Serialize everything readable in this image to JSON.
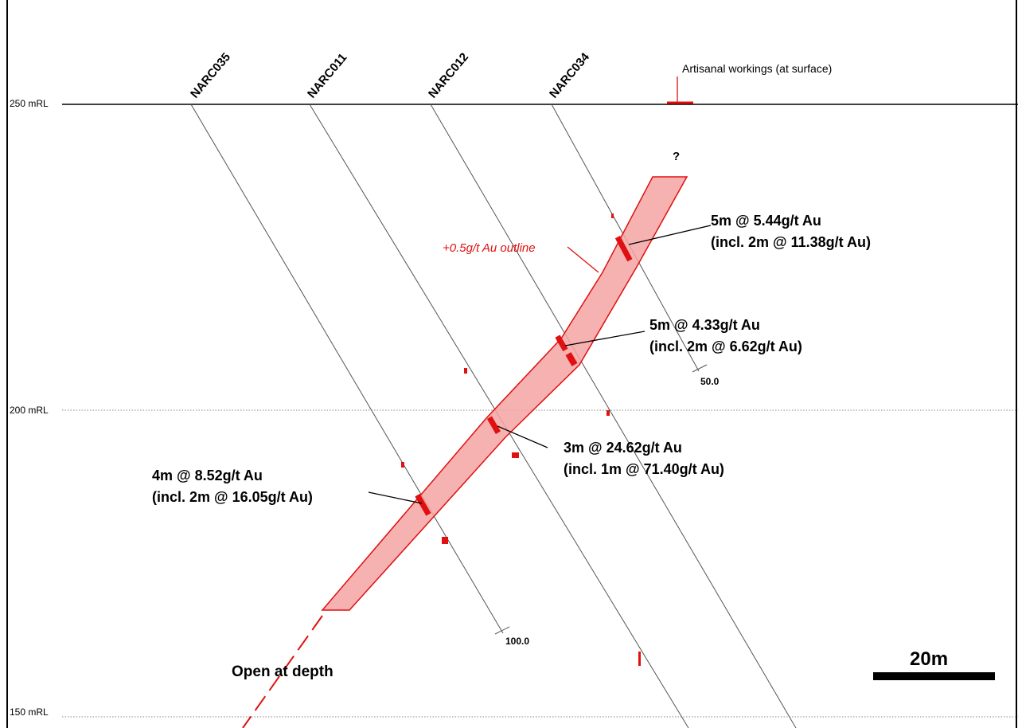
{
  "mrl_labels": {
    "rl_250": "250 mRL",
    "rl_200": "200 mRL",
    "rl_150": "150 mRL"
  },
  "drillholes": [
    {
      "name": "NARC035"
    },
    {
      "name": "NARC011"
    },
    {
      "name": "NARC012"
    },
    {
      "name": "NARC034"
    }
  ],
  "annotations": {
    "artisanal": "Artisanal workings (at surface)",
    "outline": "+0.5g/t Au outline",
    "question_mark": "?",
    "open_at_depth": "Open at depth"
  },
  "intercepts": [
    {
      "line1": "5m @ 5.44g/t Au",
      "line2": "(incl. 2m @ 11.38g/t Au)"
    },
    {
      "line1": "5m @ 4.33g/t Au",
      "line2": "(incl. 2m @ 6.62g/t Au)"
    },
    {
      "line1": "3m @ 24.62g/t Au",
      "line2": "(incl. 1m @ 71.40g/t Au)"
    },
    {
      "line1": "4m @ 8.52g/t Au",
      "line2": "(incl. 2m @ 16.05g/t Au)"
    }
  ],
  "depth_marks": {
    "d50": "50.0",
    "d100": "100.0"
  },
  "scale_bar": {
    "label": "20m"
  },
  "colors": {
    "mineralised_zone_fill": "#f4a3a3",
    "mineralised_zone_stroke": "#e01010",
    "text": "#000000"
  }
}
